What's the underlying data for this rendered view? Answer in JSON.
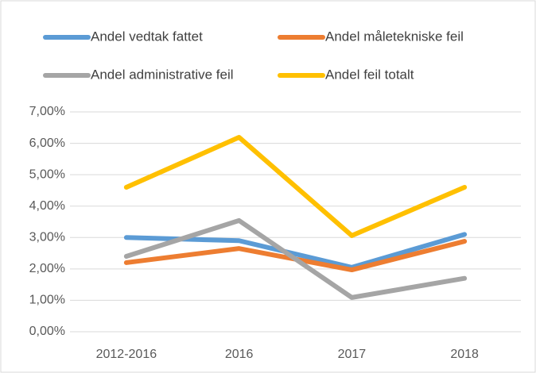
{
  "chart_data": {
    "type": "line",
    "categories": [
      "2012-2016",
      "2016",
      "2017",
      "2018"
    ],
    "series": [
      {
        "name": "Andel vedtak fattet",
        "color": "#5b9bd5",
        "values": [
          3.0,
          2.9,
          2.05,
          3.1
        ]
      },
      {
        "name": "Andel måletekniske feil",
        "color": "#ed7d31",
        "values": [
          2.2,
          2.65,
          1.97,
          2.88
        ]
      },
      {
        "name": "Andel administrative feil",
        "color": "#a5a5a5",
        "values": [
          2.4,
          3.54,
          1.09,
          1.7
        ]
      },
      {
        "name": "Andel feil totalt",
        "color": "#ffc000",
        "values": [
          4.6,
          6.19,
          3.06,
          4.6
        ]
      }
    ],
    "ylim": [
      0,
      7
    ],
    "yticks": [
      {
        "value": 0,
        "label": "0,00%"
      },
      {
        "value": 1,
        "label": "1,00%"
      },
      {
        "value": 2,
        "label": "2,00%"
      },
      {
        "value": 3,
        "label": "3,00%"
      },
      {
        "value": 4,
        "label": "4,00%"
      },
      {
        "value": 5,
        "label": "5,00%"
      },
      {
        "value": 6,
        "label": "6,00%"
      },
      {
        "value": 7,
        "label": "7,00%"
      }
    ],
    "grid": true,
    "legend": "top"
  }
}
